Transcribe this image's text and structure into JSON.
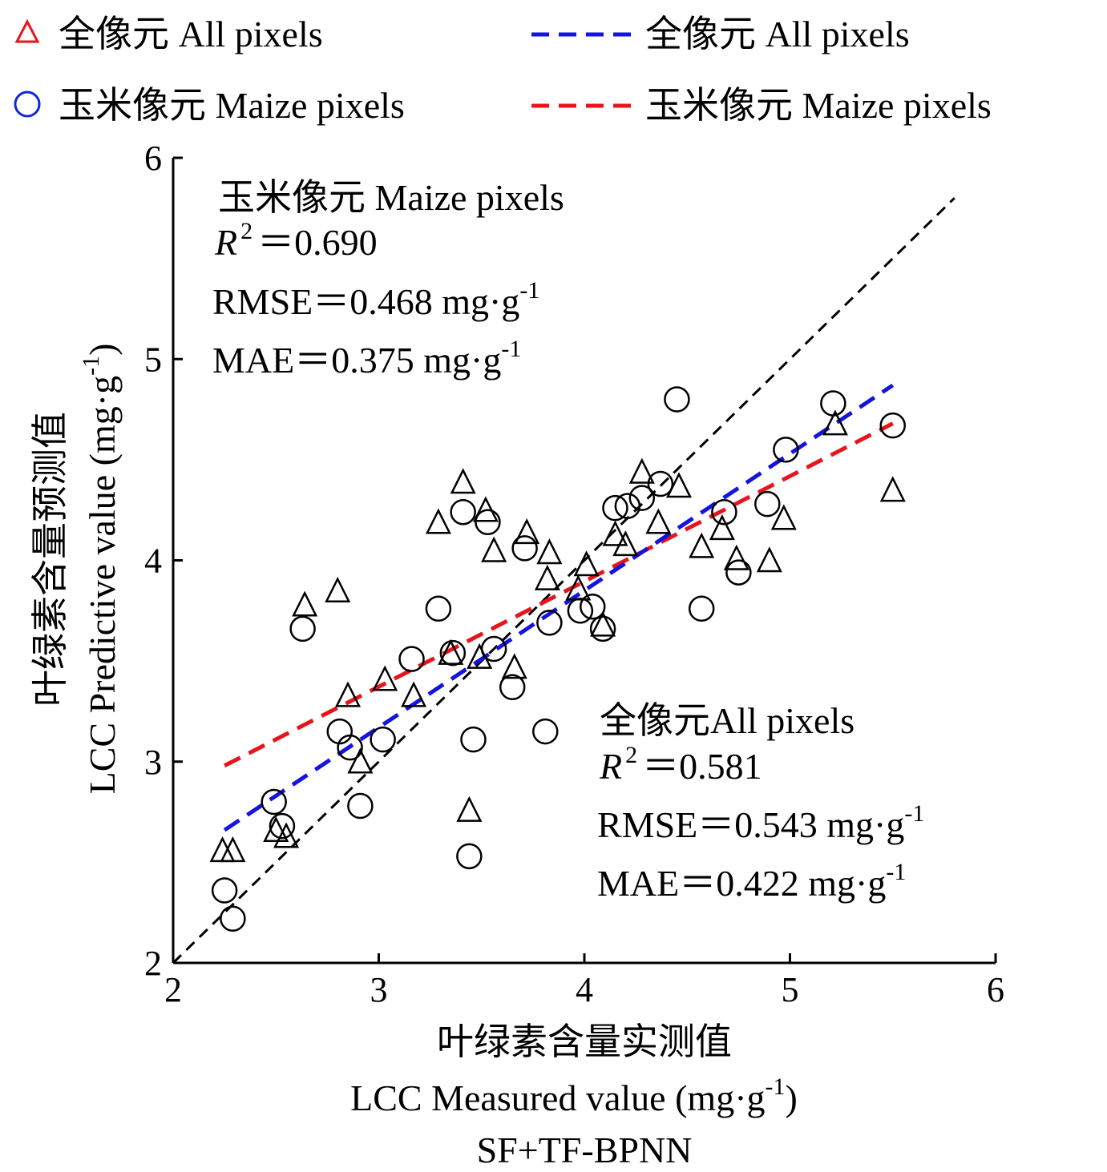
{
  "chart_data": {
    "type": "scatter",
    "title": "",
    "subtitle": "SF+TF-BPNN",
    "xlabel_cn": "叶绿素含量实测值",
    "xlabel_en": "LCC Measured value (mg·g",
    "xlabel_unit_exp": "-1",
    "xlabel_close": ")",
    "ylabel_cn": "叶绿素含量预测值",
    "ylabel_en": "LCC Predictive value (mg·g",
    "ylabel_unit_exp": "-1",
    "ylabel_close": ")",
    "xlim": [
      2,
      6
    ],
    "ylim": [
      2,
      6
    ],
    "xticks": [
      2,
      3,
      4,
      5,
      6
    ],
    "yticks": [
      2,
      3,
      4,
      5,
      6
    ],
    "grid": false,
    "legend_placement": "top",
    "legend": {
      "marker_all": "全像元 All pixels",
      "marker_maize": "玉米像元 Maize pixels",
      "line_all": "全像元 All pixels",
      "line_maize": "玉米像元 Maize pixels"
    },
    "colors": {
      "legend_triangle": "#e8141b",
      "legend_circle": "#1428d2",
      "fit_all": "#1414e0",
      "fit_maize": "#e8141b",
      "one_to_one": "#000000",
      "markers": "#000000"
    },
    "stats_maize": {
      "heading": "玉米像元 Maize pixels",
      "r2_label": "R",
      "r2_exp": "2",
      "r2_value": "＝0.690",
      "rmse": "RMSE＝0.468 mg·g",
      "rmse_exp": "-1",
      "mae": "MAE＝0.375 mg·g",
      "mae_exp": "-1"
    },
    "stats_all": {
      "heading": "全像元All pixels",
      "r2_label": "R",
      "r2_exp": "2",
      "r2_value": "＝0.581",
      "rmse": "RMSE＝0.543 mg·g",
      "rmse_exp": "-1",
      "mae": "MAE＝0.422 mg·g",
      "mae_exp": "-1"
    },
    "lines": {
      "one_to_one": [
        [
          2.0,
          2.0
        ],
        [
          5.8,
          5.8
        ]
      ],
      "fit_all": [
        [
          2.25,
          2.66
        ],
        [
          5.5,
          4.87
        ]
      ],
      "fit_maize": [
        [
          2.25,
          2.98
        ],
        [
          5.5,
          4.68
        ]
      ]
    },
    "series": [
      {
        "marker": "triangle",
        "points": [
          [
            2.24,
            2.55
          ],
          [
            2.29,
            2.55
          ],
          [
            2.5,
            2.65
          ],
          [
            2.55,
            2.62
          ],
          [
            2.85,
            3.32
          ],
          [
            2.91,
            2.99
          ],
          [
            3.03,
            3.4
          ],
          [
            3.17,
            3.32
          ],
          [
            3.35,
            3.53
          ],
          [
            3.49,
            3.51
          ],
          [
            3.66,
            3.46
          ],
          [
            3.44,
            2.75
          ],
          [
            2.64,
            3.77
          ],
          [
            2.8,
            3.84
          ],
          [
            3.29,
            4.18
          ],
          [
            3.41,
            4.38
          ],
          [
            3.52,
            4.24
          ],
          [
            3.56,
            4.04
          ],
          [
            3.72,
            4.13
          ],
          [
            3.83,
            4.03
          ],
          [
            3.82,
            3.9
          ],
          [
            3.97,
            3.85
          ],
          [
            4.01,
            3.97
          ],
          [
            4.09,
            3.67
          ],
          [
            4.15,
            4.12
          ],
          [
            4.2,
            4.07
          ],
          [
            4.28,
            4.43
          ],
          [
            4.36,
            4.18
          ],
          [
            4.46,
            4.36
          ],
          [
            4.57,
            4.06
          ],
          [
            4.67,
            4.15
          ],
          [
            4.74,
            4.0
          ],
          [
            4.9,
            3.99
          ],
          [
            4.97,
            4.2
          ],
          [
            5.22,
            4.67
          ],
          [
            5.5,
            4.34
          ]
        ]
      },
      {
        "marker": "circle",
        "points": [
          [
            2.25,
            2.36
          ],
          [
            2.29,
            2.22
          ],
          [
            2.49,
            2.8
          ],
          [
            2.53,
            2.68
          ],
          [
            2.63,
            3.66
          ],
          [
            2.81,
            3.15
          ],
          [
            2.86,
            3.07
          ],
          [
            2.91,
            2.78
          ],
          [
            3.02,
            3.11
          ],
          [
            3.16,
            3.51
          ],
          [
            3.29,
            3.76
          ],
          [
            3.36,
            3.54
          ],
          [
            3.41,
            4.24
          ],
          [
            3.44,
            2.53
          ],
          [
            3.46,
            3.11
          ],
          [
            3.53,
            4.19
          ],
          [
            3.56,
            3.56
          ],
          [
            3.65,
            3.37
          ],
          [
            3.71,
            4.06
          ],
          [
            3.81,
            3.15
          ],
          [
            3.83,
            3.69
          ],
          [
            3.98,
            3.75
          ],
          [
            4.04,
            3.77
          ],
          [
            4.09,
            3.66
          ],
          [
            4.15,
            4.26
          ],
          [
            4.21,
            4.27
          ],
          [
            4.28,
            4.31
          ],
          [
            4.37,
            4.38
          ],
          [
            4.45,
            4.8
          ],
          [
            4.57,
            3.76
          ],
          [
            4.68,
            4.24
          ],
          [
            4.75,
            3.94
          ],
          [
            4.89,
            4.28
          ],
          [
            4.98,
            4.55
          ],
          [
            5.21,
            4.78
          ],
          [
            5.5,
            4.67
          ]
        ]
      }
    ]
  }
}
